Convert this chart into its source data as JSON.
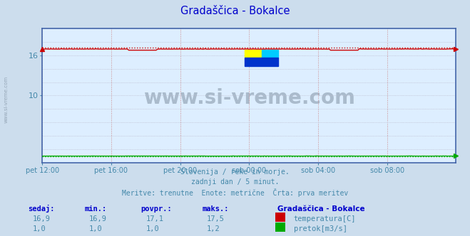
{
  "title": "Gradaščica - Bokalce",
  "title_color": "#0000cc",
  "bg_color": "#ccdded",
  "plot_bg_color": "#ddeeff",
  "watermark_text": "www.si-vreme.com",
  "watermark_color": "#aabbcc",
  "subtitle_lines": [
    "Slovenija / reke in morje.",
    "zadnji dan / 5 minut.",
    "Meritve: trenutne  Enote: metrične  Črta: prva meritev"
  ],
  "subtitle_color": "#4488aa",
  "xlabel_ticks": [
    "pet 12:00",
    "pet 16:00",
    "pet 20:00",
    "sob 00:00",
    "sob 04:00",
    "sob 08:00"
  ],
  "tick_color": "#4488aa",
  "ymin": 0,
  "ymax": 20,
  "yticks": [
    10,
    16
  ],
  "grid_color_v": "#cc8888",
  "grid_color_h": "#bbbbcc",
  "temp_line_color": "#cc0000",
  "temp_ref_color": "#cc0000",
  "flow_line_color": "#00aa00",
  "flow_ref_color": "#00aa00",
  "border_color": "#4466aa",
  "sidewater_color": "#8899aa",
  "legend_title": "Gradaščica - Bokalce",
  "legend_title_color": "#0000cc",
  "legend_label1": "temperatura[C]",
  "legend_label2": "pretok[m3/s]",
  "legend_color1": "#cc0000",
  "legend_color2": "#00aa00",
  "table_headers": [
    "sedaj:",
    "min.:",
    "povpr.:",
    "maks.:"
  ],
  "table_color": "#4488aa",
  "table_header_color": "#0000cc",
  "row1": [
    "16,9",
    "16,9",
    "17,1",
    "17,5"
  ],
  "row2": [
    "1,0",
    "1,0",
    "1,0",
    "1,2"
  ],
  "n_points": 288,
  "temp_base": 16.9,
  "temp_ref_val": 17.1,
  "flow_base": 1.0,
  "flow_ref_val": 1.0
}
